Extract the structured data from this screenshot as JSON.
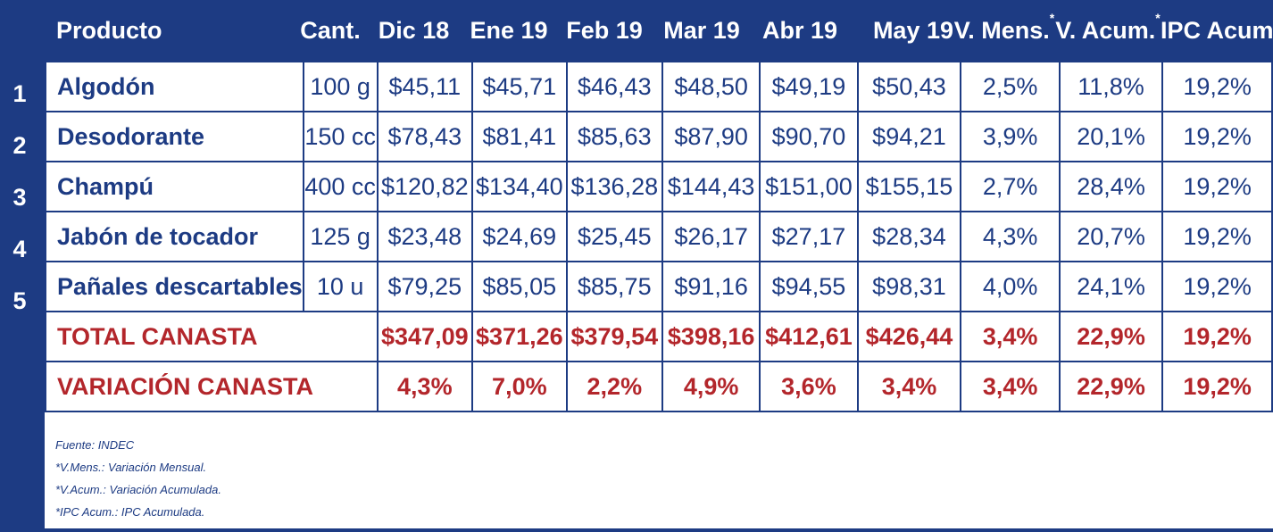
{
  "header": {
    "producto": "Producto",
    "cant": "Cant.",
    "months": [
      "Dic  18",
      "Ene 19",
      "Feb 19",
      "Mar 19",
      "Abr 19",
      "May 19"
    ],
    "v_mens": "V. Mens.",
    "v_acum": "V. Acum.",
    "ipc_acum": "IPC Acum.",
    "asterisk": "*"
  },
  "rows": [
    {
      "num": "1",
      "producto": "Algodón",
      "cant": "100 g",
      "prices": [
        "$45,11",
        "$45,71",
        "$46,43",
        "$48,50",
        "$49,19",
        "$50,43"
      ],
      "v_mens": "2,5%",
      "v_acum": "11,8%",
      "ipc_acum": "19,2%"
    },
    {
      "num": "2",
      "producto": "Desodorante",
      "cant": "150 cc",
      "prices": [
        "$78,43",
        "$81,41",
        "$85,63",
        "$87,90",
        "$90,70",
        "$94,21"
      ],
      "v_mens": "3,9%",
      "v_acum": "20,1%",
      "ipc_acum": "19,2%"
    },
    {
      "num": "3",
      "producto": "Champú",
      "cant": "400 cc",
      "prices": [
        "$120,82",
        "$134,40",
        "$136,28",
        "$144,43",
        "$151,00",
        "$155,15"
      ],
      "v_mens": "2,7%",
      "v_acum": "28,4%",
      "ipc_acum": "19,2%"
    },
    {
      "num": "4",
      "producto": "Jabón de tocador",
      "cant": "125 g",
      "prices": [
        "$23,48",
        "$24,69",
        "$25,45",
        "$26,17",
        "$27,17",
        "$28,34"
      ],
      "v_mens": "4,3%",
      "v_acum": "20,7%",
      "ipc_acum": "19,2%"
    },
    {
      "num": "5",
      "producto": "Pañales descartables",
      "cant": "10 u",
      "prices": [
        "$79,25",
        "$85,05",
        "$85,75",
        "$91,16",
        "$94,55",
        "$98,31"
      ],
      "v_mens": "4,0%",
      "v_acum": "24,1%",
      "ipc_acum": "19,2%"
    }
  ],
  "total": {
    "label": "TOTAL CANASTA",
    "prices": [
      "$347,09",
      "$371,26",
      "$379,54",
      "$398,16",
      "$412,61",
      "$426,44"
    ],
    "v_mens": "3,4%",
    "v_acum": "22,9%",
    "ipc_acum": "19,2%"
  },
  "variacion": {
    "label": "VARIACIÓN CANASTA",
    "values": [
      "4,3%",
      "7,0%",
      "2,2%",
      "4,9%",
      "3,6%",
      "3,4%"
    ],
    "v_mens": "3,4%",
    "v_acum": "22,9%",
    "ipc_acum": "19,2%"
  },
  "notes": [
    "Fuente: INDEC",
    "*V.Mens.: Variación Mensual.",
    "*V.Acum.: Variación Acumulada.",
    "*IPC Acum.: IPC  Acumulada."
  ],
  "colors": {
    "navy": "#1d3b83",
    "red": "#b3262b",
    "white": "#ffffff"
  }
}
